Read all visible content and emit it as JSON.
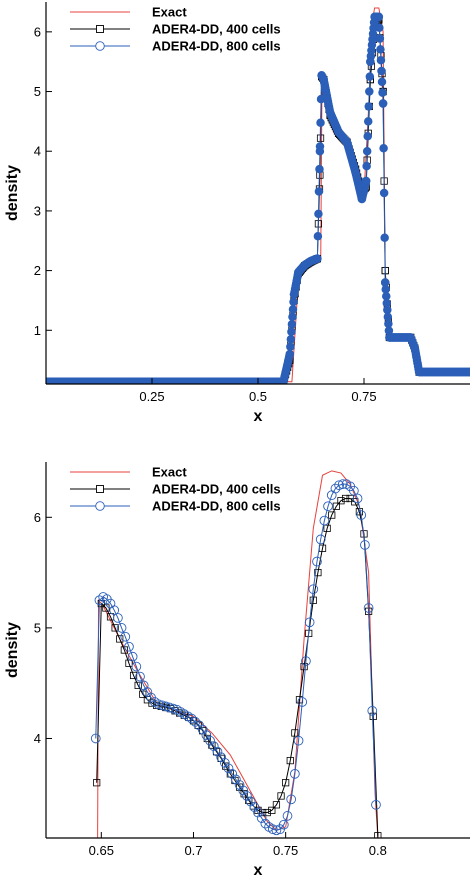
{
  "colors": {
    "exact": "#e8413c",
    "dd400": "#000000",
    "dd800": "#2b5fb8"
  },
  "chart_data": [
    {
      "type": "line",
      "xlabel": "x",
      "ylabel": "density",
      "xlim": [
        0.0,
        1.0
      ],
      "ylim": [
        0.1,
        6.5
      ],
      "xticks": [
        0.25,
        0.5,
        0.75
      ],
      "xtick_labels": [
        "0.25",
        "0.5",
        "0.75"
      ],
      "yticks": [
        1,
        2,
        3,
        4,
        5,
        6
      ],
      "ytick_labels": [
        "1",
        "2",
        "3",
        "4",
        "5",
        "6"
      ],
      "grid": false,
      "legend_position": "top-left",
      "series": [
        {
          "name": "Exact",
          "marker": "none",
          "x": [
            0.0,
            0.58,
            0.595,
            0.61,
            0.625,
            0.64,
            0.648,
            0.651,
            0.66,
            0.68,
            0.7,
            0.72,
            0.74,
            0.75,
            0.76,
            0.77,
            0.775,
            0.785,
            0.795,
            0.8,
            0.805,
            0.87,
            0.872,
            1.0
          ],
          "y": [
            0.138,
            0.138,
            1.8,
            2.05,
            2.15,
            2.2,
            2.2,
            5.25,
            5.0,
            4.3,
            4.2,
            3.9,
            3.4,
            3.3,
            4.6,
            6.2,
            6.4,
            6.4,
            6.0,
            1.8,
            0.87,
            0.87,
            0.3,
            0.3
          ]
        },
        {
          "name": "ADER4-DD, 400 cells",
          "marker": "square",
          "x": [
            0.0,
            0.56,
            0.575,
            0.585,
            0.595,
            0.61,
            0.625,
            0.64,
            0.646,
            0.65,
            0.655,
            0.67,
            0.69,
            0.71,
            0.73,
            0.745,
            0.755,
            0.765,
            0.775,
            0.785,
            0.795,
            0.8,
            0.81,
            0.86,
            0.87,
            0.88,
            1.0
          ],
          "y": [
            0.138,
            0.138,
            0.5,
            1.5,
            1.95,
            2.08,
            2.15,
            2.2,
            3.6,
            5.25,
            5.2,
            4.6,
            4.3,
            4.15,
            3.7,
            3.3,
            3.4,
            5.2,
            6.1,
            6.2,
            5.0,
            2.0,
            0.88,
            0.88,
            0.7,
            0.3,
            0.3
          ]
        },
        {
          "name": "ADER4-DD, 800 cells",
          "marker": "circle",
          "x": [
            0.0,
            0.56,
            0.575,
            0.585,
            0.595,
            0.61,
            0.625,
            0.64,
            0.646,
            0.65,
            0.655,
            0.67,
            0.69,
            0.71,
            0.73,
            0.745,
            0.755,
            0.765,
            0.775,
            0.785,
            0.795,
            0.8,
            0.81,
            0.86,
            0.87,
            0.88,
            1.0
          ],
          "y": [
            0.138,
            0.138,
            0.6,
            1.6,
            1.97,
            2.09,
            2.16,
            2.2,
            4.0,
            5.27,
            5.2,
            4.65,
            4.32,
            4.15,
            3.65,
            3.2,
            3.5,
            5.5,
            6.25,
            6.25,
            4.8,
            1.8,
            0.88,
            0.88,
            0.7,
            0.3,
            0.3
          ]
        }
      ]
    },
    {
      "type": "line",
      "xlabel": "x",
      "ylabel": "density",
      "xlim": [
        0.62,
        0.85
      ],
      "ylim": [
        3.1,
        6.5
      ],
      "xticks": [
        0.65,
        0.7,
        0.75,
        0.8
      ],
      "xtick_labels": [
        "0.65",
        "0.7",
        "0.75",
        "0.8"
      ],
      "yticks": [
        4,
        5,
        6
      ],
      "ytick_labels": [
        "4",
        "5",
        "6"
      ],
      "grid": false,
      "legend_position": "top-left",
      "series": [
        {
          "name": "Exact",
          "marker": "none",
          "x": [
            0.648,
            0.6485,
            0.651,
            0.66,
            0.67,
            0.68,
            0.69,
            0.7,
            0.71,
            0.72,
            0.73,
            0.74,
            0.745,
            0.75,
            0.755,
            0.76,
            0.765,
            0.77,
            0.775,
            0.78,
            0.785,
            0.79,
            0.795,
            0.7985,
            0.8
          ],
          "y": [
            3.1,
            5.25,
            5.2,
            4.9,
            4.6,
            4.32,
            4.25,
            4.2,
            4.05,
            3.85,
            3.55,
            3.25,
            3.17,
            3.2,
            3.7,
            4.9,
            5.9,
            6.38,
            6.42,
            6.4,
            6.3,
            6.1,
            5.5,
            3.5,
            3.1
          ]
        },
        {
          "name": "ADER4-DD, 400 cells",
          "marker": "square",
          "x": [
            0.6475,
            0.65,
            0.6525,
            0.655,
            0.6575,
            0.66,
            0.6625,
            0.665,
            0.6675,
            0.67,
            0.6725,
            0.675,
            0.6775,
            0.68,
            0.6825,
            0.685,
            0.6875,
            0.69,
            0.6925,
            0.695,
            0.6975,
            0.7,
            0.7025,
            0.705,
            0.7075,
            0.71,
            0.7125,
            0.715,
            0.7175,
            0.72,
            0.7225,
            0.725,
            0.7275,
            0.73,
            0.7325,
            0.735,
            0.7375,
            0.74,
            0.7425,
            0.745,
            0.7475,
            0.75,
            0.7525,
            0.755,
            0.7575,
            0.76,
            0.7625,
            0.765,
            0.7675,
            0.77,
            0.7725,
            0.775,
            0.7775,
            0.78,
            0.7825,
            0.785,
            0.7875,
            0.79,
            0.7925,
            0.795,
            0.7975,
            0.8
          ],
          "y": [
            3.6,
            5.22,
            5.18,
            5.1,
            5.0,
            4.9,
            4.8,
            4.68,
            4.57,
            4.48,
            4.4,
            4.35,
            4.32,
            4.3,
            4.29,
            4.28,
            4.27,
            4.25,
            4.23,
            4.21,
            4.19,
            4.16,
            4.12,
            4.07,
            4.0,
            3.94,
            3.88,
            3.82,
            3.75,
            3.68,
            3.62,
            3.56,
            3.5,
            3.44,
            3.39,
            3.35,
            3.33,
            3.33,
            3.35,
            3.4,
            3.48,
            3.6,
            3.8,
            4.05,
            4.35,
            4.65,
            4.95,
            5.25,
            5.5,
            5.72,
            5.9,
            6.02,
            6.1,
            6.15,
            6.17,
            6.17,
            6.14,
            6.05,
            5.85,
            5.15,
            4.2,
            3.12
          ]
        },
        {
          "name": "ADER4-DD, 800 cells",
          "marker": "circle",
          "x": [
            0.647,
            0.649,
            0.651,
            0.653,
            0.655,
            0.657,
            0.659,
            0.661,
            0.663,
            0.665,
            0.667,
            0.669,
            0.671,
            0.673,
            0.675,
            0.677,
            0.679,
            0.681,
            0.683,
            0.685,
            0.687,
            0.689,
            0.691,
            0.693,
            0.695,
            0.697,
            0.699,
            0.701,
            0.703,
            0.705,
            0.707,
            0.709,
            0.711,
            0.713,
            0.715,
            0.717,
            0.719,
            0.721,
            0.723,
            0.725,
            0.727,
            0.729,
            0.731,
            0.733,
            0.735,
            0.737,
            0.739,
            0.741,
            0.743,
            0.745,
            0.747,
            0.749,
            0.751,
            0.753,
            0.755,
            0.757,
            0.759,
            0.761,
            0.763,
            0.765,
            0.767,
            0.769,
            0.771,
            0.773,
            0.775,
            0.777,
            0.779,
            0.781,
            0.783,
            0.785,
            0.787,
            0.789,
            0.791,
            0.793,
            0.795,
            0.797,
            0.799
          ],
          "y": [
            4.0,
            5.25,
            5.28,
            5.26,
            5.22,
            5.16,
            5.09,
            5.0,
            4.92,
            4.83,
            4.74,
            4.65,
            4.56,
            4.48,
            4.42,
            4.37,
            4.33,
            4.31,
            4.3,
            4.29,
            4.28,
            4.27,
            4.26,
            4.24,
            4.22,
            4.2,
            4.18,
            4.15,
            4.12,
            4.08,
            4.03,
            3.98,
            3.93,
            3.88,
            3.83,
            3.78,
            3.73,
            3.68,
            3.63,
            3.58,
            3.53,
            3.48,
            3.43,
            3.38,
            3.33,
            3.28,
            3.23,
            3.2,
            3.18,
            3.17,
            3.18,
            3.22,
            3.3,
            3.45,
            3.68,
            3.98,
            4.33,
            4.7,
            5.05,
            5.35,
            5.6,
            5.8,
            5.97,
            6.1,
            6.2,
            6.26,
            6.29,
            6.3,
            6.3,
            6.28,
            6.24,
            6.17,
            6.02,
            5.75,
            5.18,
            4.25,
            3.4
          ]
        }
      ]
    }
  ]
}
